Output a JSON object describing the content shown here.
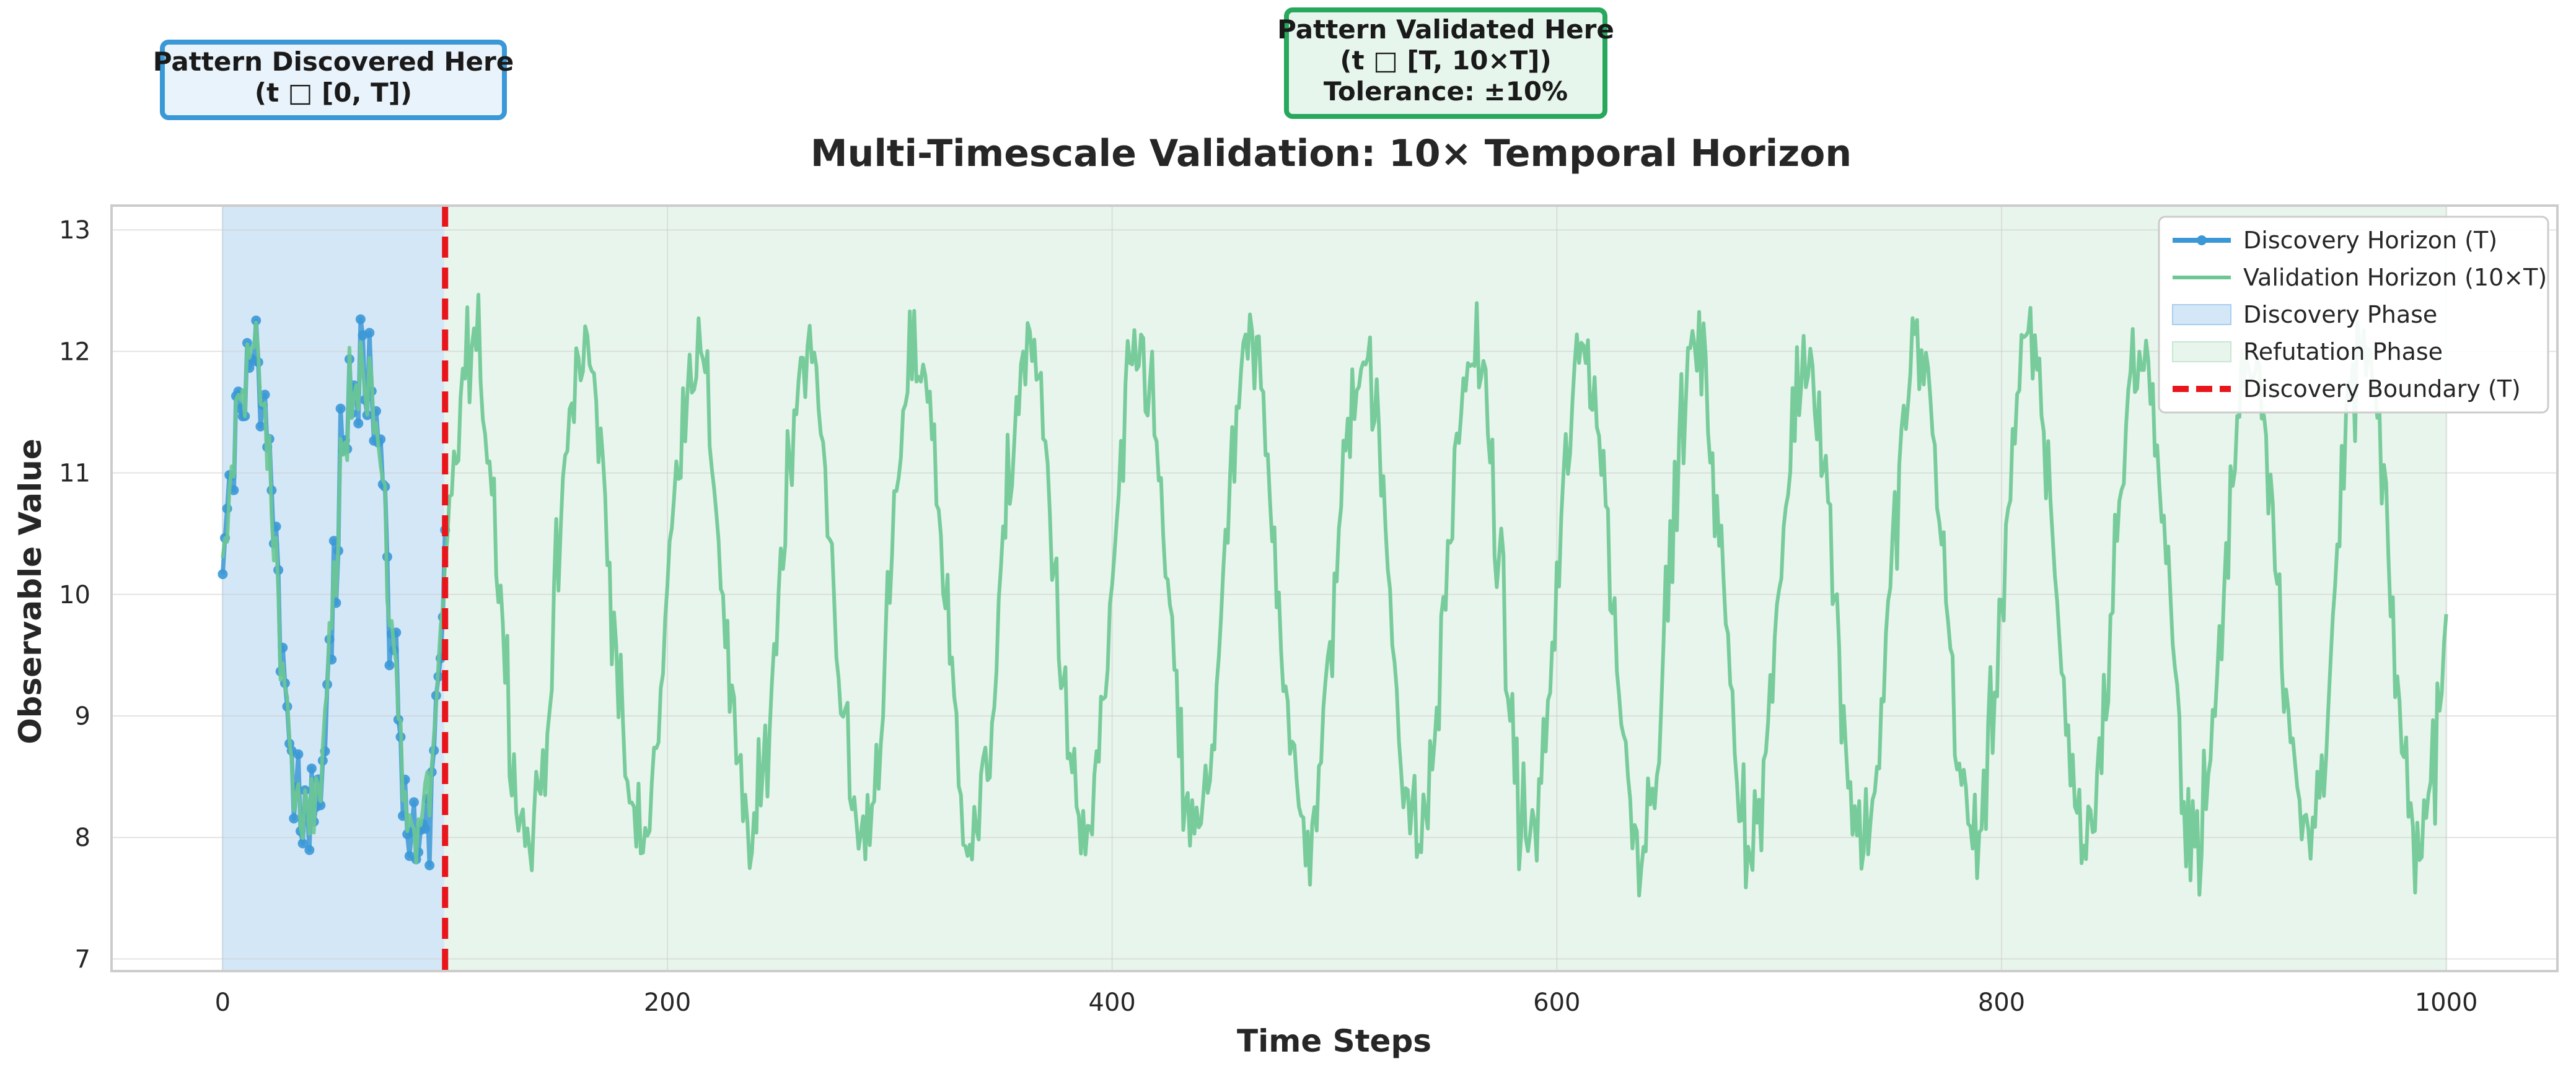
{
  "chart_data": {
    "type": "line",
    "title": "Multi-Timescale Validation: 10× Temporal Horizon",
    "xlabel": "Time Steps",
    "ylabel": "Observable Value",
    "xlim": [
      -50,
      1050
    ],
    "ylim": [
      6.9,
      13.2
    ],
    "xticks": [
      0,
      200,
      400,
      600,
      800,
      1000
    ],
    "yticks": [
      7,
      8,
      9,
      10,
      11,
      12,
      13
    ],
    "grid": true,
    "legend_position": "top-right",
    "legend": [
      "Discovery Horizon (T)",
      "Validation Horizon (10×T)",
      "Discovery Phase",
      "Refutation Phase",
      "Discovery Boundary (T)"
    ],
    "annotations": [
      {
        "lines": [
          "Pattern Discovered Here",
          "(t □ [0, T])"
        ],
        "color": "#3b98d6"
      },
      {
        "lines": [
          "Pattern Validated Here",
          "(t □ [T, 10×T])",
          "Tolerance: ±10%"
        ],
        "color": "#27a85c"
      }
    ],
    "shaded_regions": [
      {
        "name": "Discovery Phase",
        "x": [
          0,
          100
        ],
        "color": "#d4e7f7"
      },
      {
        "name": "Refutation Phase",
        "x": [
          100,
          1000
        ],
        "color": "#e8f5ec"
      }
    ],
    "vertical_lines": [
      {
        "name": "Discovery Boundary (T)",
        "x": 100,
        "color": "#e8161b",
        "style": "dashed"
      }
    ],
    "series": [
      {
        "name": "Discovery Horizon (T)",
        "color": "#3b98d6",
        "marker": "circle",
        "signal": {
          "x_start": 0,
          "x_end": 100,
          "baseline": 10,
          "amplitude": 2,
          "period": 50,
          "noise": 0.3
        }
      },
      {
        "name": "Validation Horizon (10×T)",
        "color": "#6cc892",
        "marker": "none",
        "signal": {
          "x_start": 0,
          "x_end": 1000,
          "baseline": 10,
          "amplitude": 2,
          "period": 50,
          "noise": 0.3
        }
      }
    ]
  }
}
